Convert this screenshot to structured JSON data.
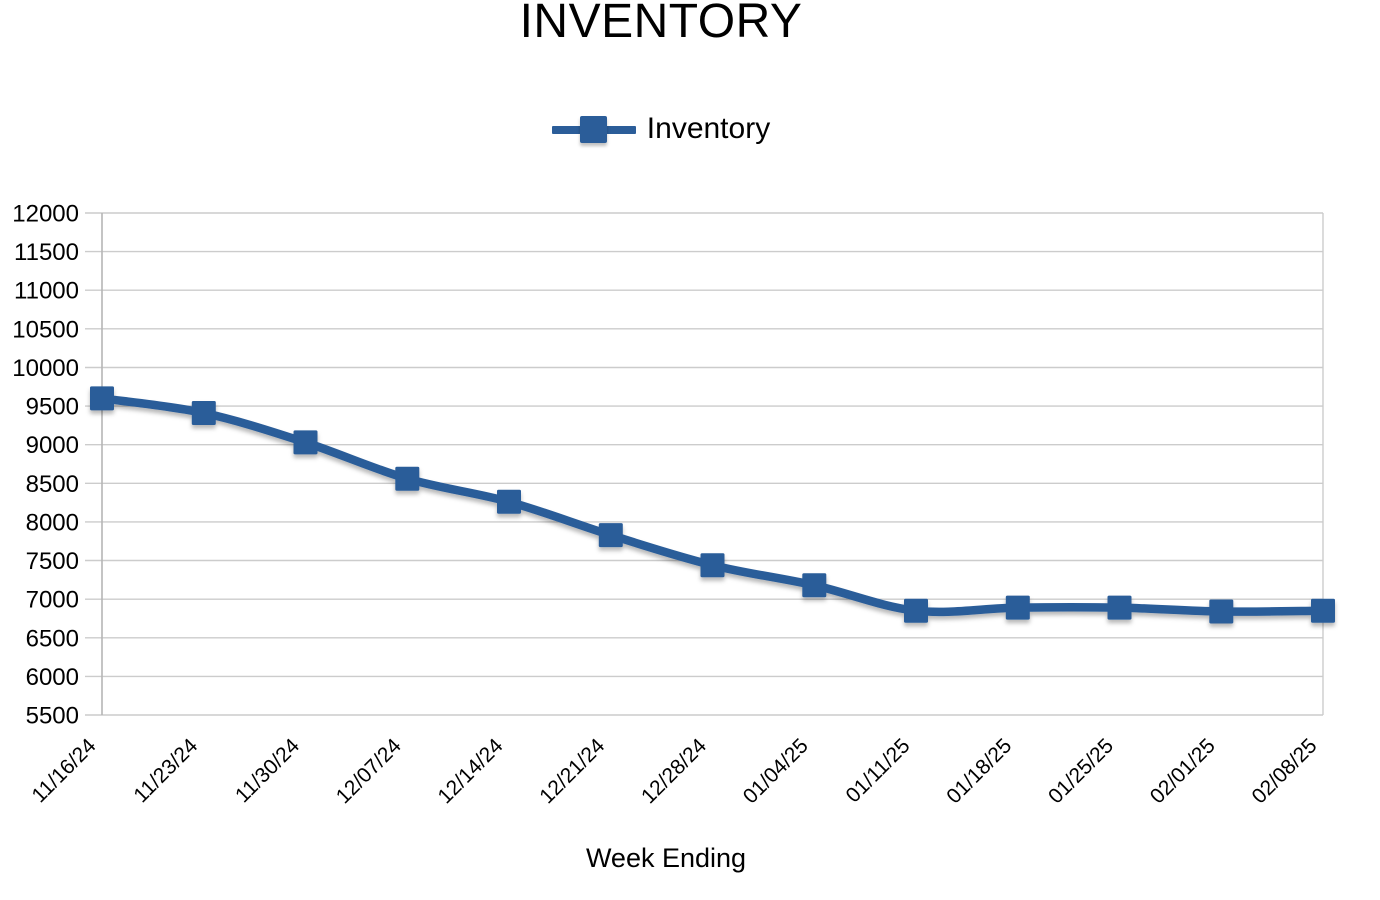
{
  "chart_data": {
    "type": "line",
    "title": "INVENTORY",
    "xlabel": "Week Ending",
    "ylabel": "",
    "categories": [
      "11/16/24",
      "11/23/24",
      "11/30/24",
      "12/07/24",
      "12/14/24",
      "12/21/24",
      "12/28/24",
      "01/04/25",
      "01/11/25",
      "01/18/25",
      "01/25/25",
      "02/01/25",
      "02/08/25"
    ],
    "series": [
      {
        "name": "Inventory",
        "values": [
          9600,
          9410,
          9030,
          8560,
          8260,
          7830,
          7440,
          7180,
          6850,
          6890,
          6890,
          6840,
          6850
        ]
      }
    ],
    "ylim": [
      5500,
      12000
    ],
    "ytick_step": 500,
    "yticks": [
      12000,
      11500,
      11000,
      10500,
      10000,
      9500,
      9000,
      8500,
      8000,
      7500,
      7000,
      6500,
      6000,
      5500
    ],
    "grid": true,
    "legend_position": "top",
    "marker": "square",
    "colors": {
      "series": "#2B5D99",
      "gridline": "#CCCCCC",
      "axis": "#B5B5B5",
      "text": "#000000",
      "background": "#FFFFFF"
    }
  }
}
